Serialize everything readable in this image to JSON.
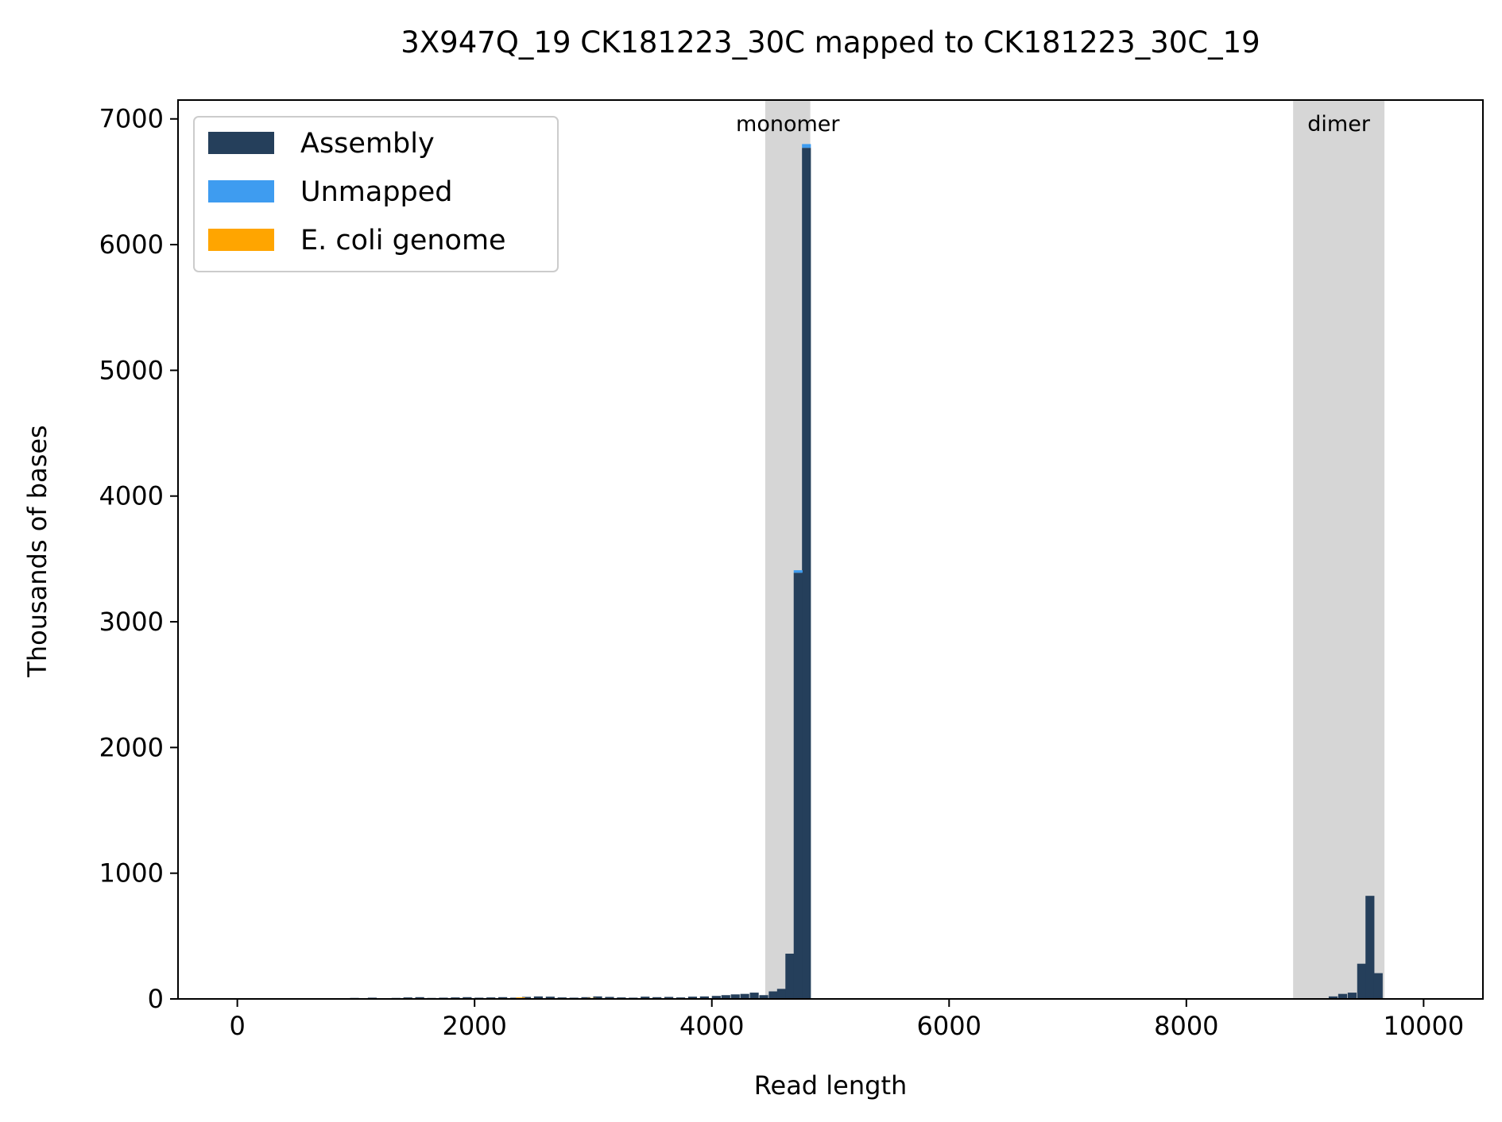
{
  "chart_data": {
    "type": "bar",
    "title": "3X947Q_19 CK181223_30C mapped to CK181223_30C_19",
    "xlabel": "Read length",
    "ylabel": "Thousands of bases",
    "xlim": [
      -500,
      10500
    ],
    "ylim": [
      0,
      7150
    ],
    "xticks": [
      0,
      2000,
      4000,
      6000,
      8000,
      10000
    ],
    "xtick_labels": [
      "0",
      "2000",
      "4000",
      "6000",
      "8000",
      "10000"
    ],
    "yticks": [
      0,
      1000,
      2000,
      3000,
      4000,
      5000,
      6000,
      7000
    ],
    "ytick_labels": [
      "0",
      "1000",
      "2000",
      "3000",
      "4000",
      "5000",
      "6000",
      "7000"
    ],
    "grid": false,
    "legend": {
      "placement": "top-left",
      "entries": [
        {
          "label": "Assembly",
          "color": "#253f5b"
        },
        {
          "label": "Unmapped",
          "color": "#3e9cf0"
        },
        {
          "label": "E. coli genome",
          "color": "#ffa500"
        }
      ]
    },
    "regions": [
      {
        "label": "monomer",
        "x_start": 4450,
        "x_end": 4830,
        "color": "#d6d6d6"
      },
      {
        "label": "dimer",
        "x_start": 8900,
        "x_end": 9670,
        "color": "#d6d6d6"
      }
    ],
    "bin_width": 75,
    "series": [
      {
        "name": "Assembly",
        "color": "#253f5b",
        "x": [
          950,
          1100,
          1200,
          1300,
          1400,
          1500,
          1600,
          1700,
          1800,
          1900,
          2000,
          2100,
          2200,
          2300,
          2400,
          2500,
          2600,
          2700,
          2800,
          2900,
          3000,
          3100,
          3200,
          3300,
          3400,
          3500,
          3600,
          3700,
          3800,
          3900,
          4000,
          4080,
          4160,
          4240,
          4320,
          4400,
          4480,
          4550,
          4620,
          4690,
          4760,
          5600,
          5800,
          6000,
          9200,
          9280,
          9360,
          9440,
          9510
        ],
        "values": [
          8,
          10,
          6,
          8,
          12,
          14,
          8,
          10,
          12,
          14,
          10,
          12,
          14,
          10,
          16,
          20,
          18,
          12,
          10,
          14,
          20,
          16,
          12,
          10,
          18,
          14,
          16,
          12,
          18,
          20,
          24,
          30,
          36,
          40,
          50,
          30,
          60,
          80,
          360,
          3390,
          6770,
          6,
          4,
          4,
          20,
          40,
          50,
          280,
          820
        ]
      },
      {
        "name": "Unmapped",
        "color": "#3e9cf0",
        "x": [
          4690,
          4760
        ],
        "values": [
          20,
          30
        ]
      },
      {
        "name": "E. coli genome",
        "color": "#ffa500",
        "x": [
          2350,
          2950
        ],
        "values": [
          12,
          8
        ]
      }
    ],
    "extra_bar": {
      "series": "Assembly",
      "x": 9580,
      "value": 205
    }
  }
}
